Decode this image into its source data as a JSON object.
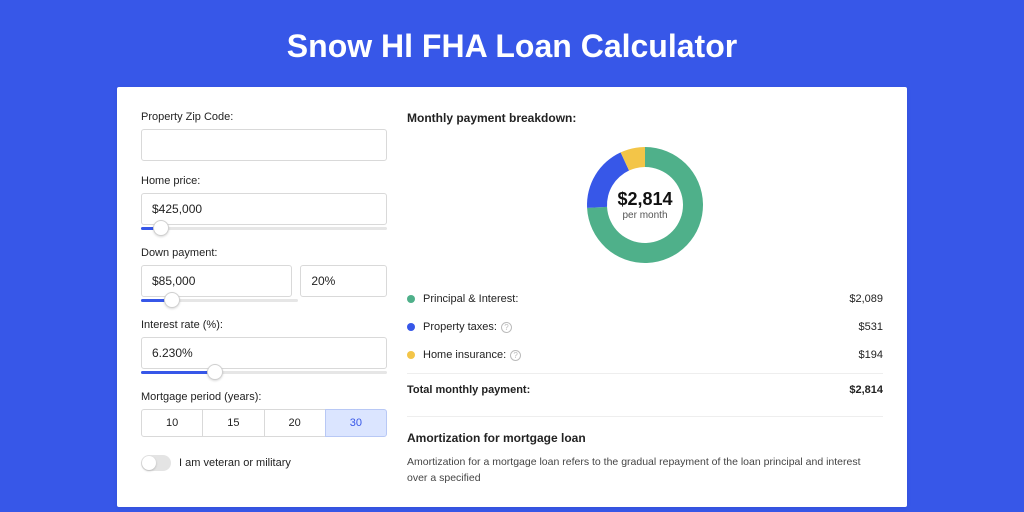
{
  "page": {
    "title": "Snow Hl FHA Loan Calculator"
  },
  "colors": {
    "brand": "#3757e8",
    "principal": "#4fb08a",
    "taxes": "#3757e8",
    "insurance": "#f3c548"
  },
  "form": {
    "zip": {
      "label": "Property Zip Code:",
      "value": ""
    },
    "home_price": {
      "label": "Home price:",
      "value": "$425,000",
      "slider_pct": 8
    },
    "down_payment": {
      "label": "Down payment:",
      "amount": "$85,000",
      "percent": "20%",
      "slider_pct": 20
    },
    "interest": {
      "label": "Interest rate (%):",
      "value": "6.230%",
      "slider_pct": 30
    },
    "period": {
      "label": "Mortgage period (years):",
      "options": [
        "10",
        "15",
        "20",
        "30"
      ],
      "selected": "30"
    },
    "veteran": {
      "label": "I am veteran or military",
      "on": false
    }
  },
  "breakdown": {
    "title": "Monthly payment breakdown:",
    "center_value": "$2,814",
    "center_sub": "per month",
    "items": [
      {
        "key": "principal",
        "label": "Principal & Interest:",
        "amount": "$2,089",
        "info": false,
        "pct": 74.2
      },
      {
        "key": "taxes",
        "label": "Property taxes:",
        "amount": "$531",
        "info": true,
        "pct": 18.9
      },
      {
        "key": "insurance",
        "label": "Home insurance:",
        "amount": "$194",
        "info": true,
        "pct": 6.9
      }
    ],
    "total_label": "Total monthly payment:",
    "total_amount": "$2,814"
  },
  "amort": {
    "title": "Amortization for mortgage loan",
    "text": "Amortization for a mortgage loan refers to the gradual repayment of the loan principal and interest over a specified"
  }
}
